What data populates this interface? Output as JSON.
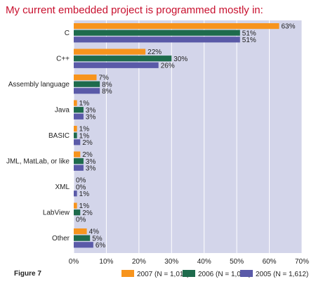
{
  "figure_label": "Figure 7",
  "colors": {
    "plot_bg": "#d3d5ea",
    "grid": "#ffffff",
    "title": "#c8102e"
  },
  "chart_data": {
    "type": "bar",
    "orientation": "horizontal",
    "title": "My current embedded project is programmed mostly in:",
    "xlabel": "",
    "ylabel": "",
    "xlim": [
      0,
      70
    ],
    "x_ticks": [
      "0%",
      "10%",
      "20%",
      "30%",
      "40%",
      "50%",
      "60%",
      "70%"
    ],
    "grid": true,
    "legend_position": "bottom",
    "categories": [
      "C",
      "C++",
      "Assembly language",
      "Java",
      "BASIC",
      "JML, MatLab, or like",
      "XML",
      "LabView",
      "Other"
    ],
    "series": [
      {
        "name": "2007 (N = 1,011)",
        "color": "#f7941d",
        "values": [
          63,
          22,
          7,
          1,
          1,
          2,
          0,
          1,
          4
        ],
        "labels": [
          "63%",
          "22%",
          "7%",
          "1%",
          "1%",
          "2%",
          "0%",
          "1%",
          "4%"
        ]
      },
      {
        "name": "2006 (N = 1,043)",
        "color": "#1e6b4c",
        "values": [
          51,
          30,
          8,
          3,
          1,
          3,
          0,
          2,
          5
        ],
        "labels": [
          "51%",
          "30%",
          "8%",
          "3%",
          "1%",
          "3%",
          "0%",
          "2%",
          "5%"
        ]
      },
      {
        "name": "2005 (N = 1,612)",
        "color": "#5a5aa8",
        "values": [
          51,
          26,
          8,
          3,
          2,
          3,
          1,
          0,
          6
        ],
        "labels": [
          "51%",
          "26%",
          "8%",
          "3%",
          "2%",
          "3%",
          "1%",
          "0%",
          "6%"
        ]
      }
    ]
  }
}
